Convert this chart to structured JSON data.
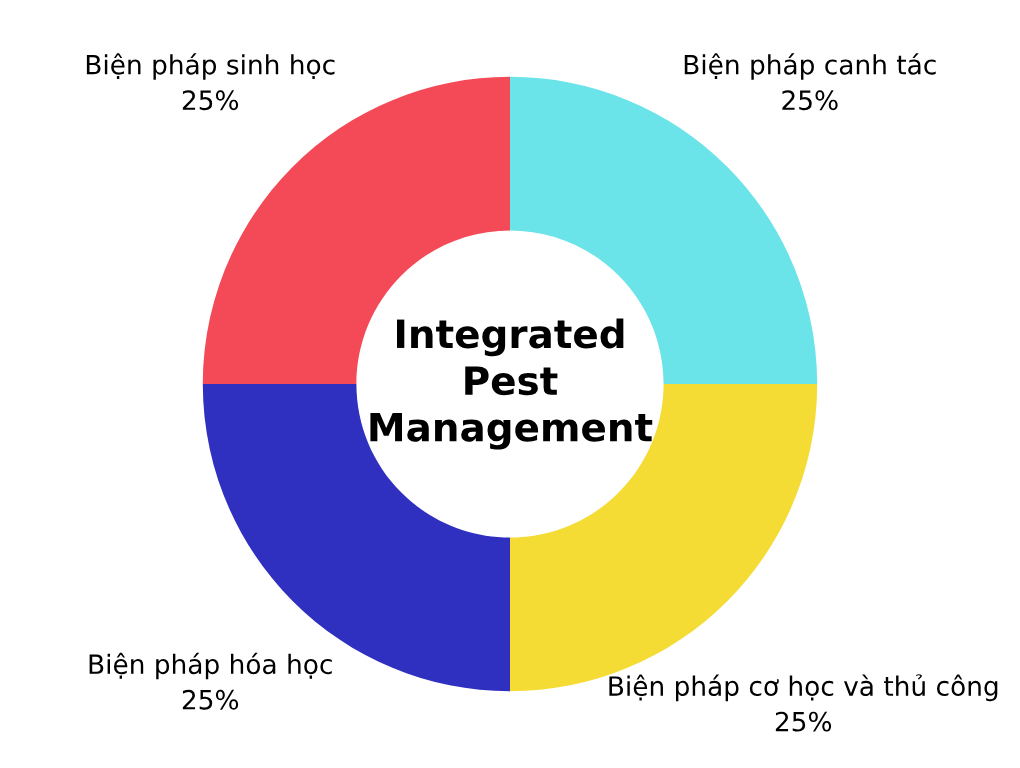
{
  "chart_data": {
    "type": "donut",
    "title": "Integrated Pest Management",
    "categories": [
      "Biện pháp canh tác",
      "Biện pháp cơ học và thủ công",
      "Biện pháp hóa học",
      "Biện pháp sinh học"
    ],
    "values": [
      25,
      25,
      25,
      25
    ],
    "colors": [
      "#6ae4e8",
      "#f5dc35",
      "#3030c0",
      "#f44a58"
    ],
    "value_labels": [
      "25%",
      "25%",
      "25%",
      "25%"
    ]
  }
}
